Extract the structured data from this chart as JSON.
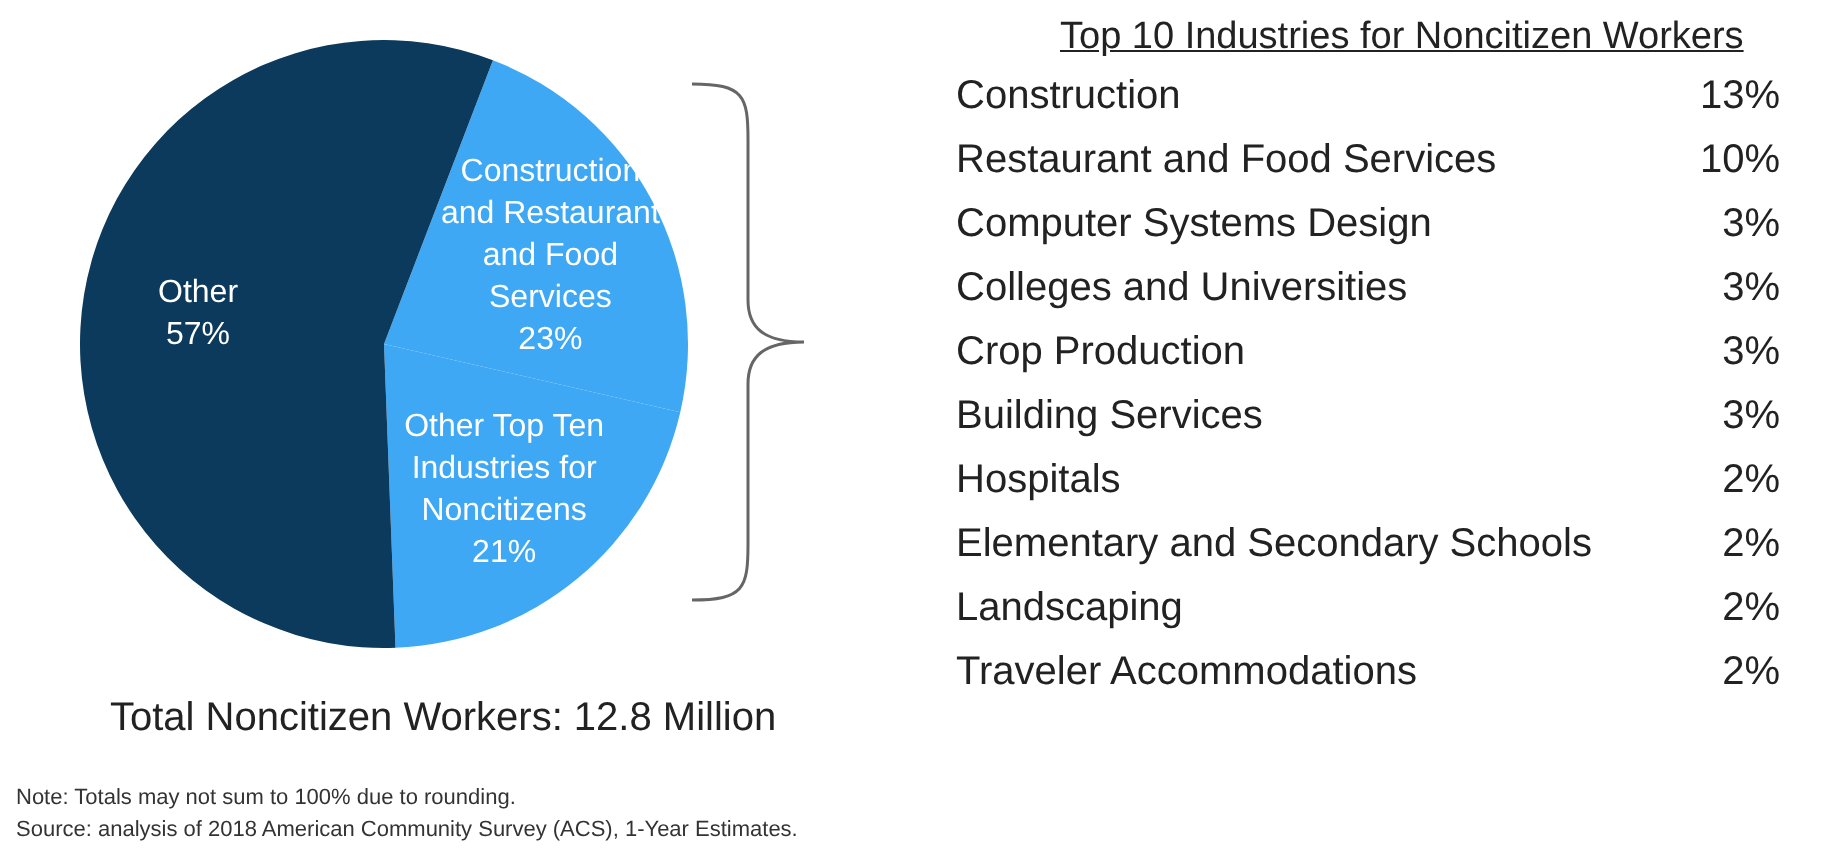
{
  "chart_data": [
    {
      "type": "pie",
      "categories": [
        "Construction and Restaurant and Food Services",
        "Other Top Ten Industries for Noncitizens",
        "Other"
      ],
      "values": [
        23,
        21,
        57
      ],
      "colors": [
        "#3ea8f4",
        "#3ea8f4",
        "#0b3a5c"
      ],
      "value_labels": [
        "23%",
        "21%",
        "57%"
      ],
      "annotations": [
        "Total Noncitizen Workers: 12.8 Million",
        "Note: Totals may not sum to 100% due to rounding.",
        "Source: analysis of 2018 American Community Survey (ACS), 1-Year Estimates."
      ]
    },
    {
      "type": "other",
      "title": "Top 10 Industries for Noncitizen Workers",
      "categories": [
        "Construction",
        "Restaurant and Food Services",
        "Computer Systems Design",
        "Colleges and Universities",
        "Crop Production",
        "Building Services",
        "Hospitals",
        "Elementary and Secondary Schools",
        "Landscaping",
        "Traveler Accommodations"
      ],
      "values": [
        13,
        10,
        3,
        3,
        3,
        3,
        2,
        2,
        2,
        2
      ],
      "value_labels": [
        "13%",
        "10%",
        "3%",
        "3%",
        "3%",
        "3%",
        "2%",
        "2%",
        "2%",
        "2%"
      ]
    }
  ]
}
